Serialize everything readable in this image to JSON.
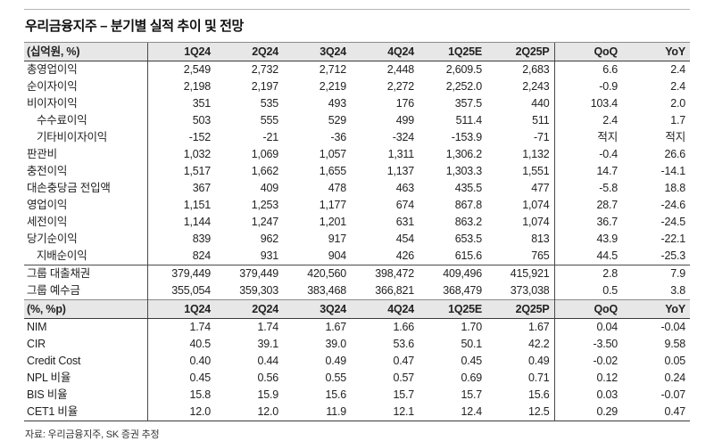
{
  "page": {
    "title": "우리금융지주 – 분기별 실적 추이 및 전망",
    "footer": "자료: 우리금융지주, SK 증권 추정"
  },
  "colors": {
    "header_bg": "#e7e7e7",
    "text": "#222222",
    "border_dark": "#3a3a3a"
  },
  "sections": [
    {
      "unit_label": "(십억원, %)",
      "columns": [
        "1Q24",
        "2Q24",
        "3Q24",
        "4Q24",
        "1Q25E",
        "2Q25P",
        "QoQ",
        "YoY"
      ],
      "row_groups": [
        {
          "rows": [
            {
              "label": "총영업이익",
              "indent": false,
              "values": [
                "2,549",
                "2,732",
                "2,712",
                "2,448",
                "2,609.5",
                "2,683",
                "6.6",
                "2.4"
              ]
            },
            {
              "label": "순이자이익",
              "indent": false,
              "values": [
                "2,198",
                "2,197",
                "2,219",
                "2,272",
                "2,252.0",
                "2,243",
                "-0.9",
                "2.4"
              ]
            },
            {
              "label": "비이자이익",
              "indent": false,
              "values": [
                "351",
                "535",
                "493",
                "176",
                "357.5",
                "440",
                "103.4",
                "2.0"
              ]
            },
            {
              "label": "수수료이익",
              "indent": true,
              "values": [
                "503",
                "555",
                "529",
                "499",
                "511.4",
                "511",
                "2.4",
                "1.7"
              ]
            },
            {
              "label": "기타비이자이익",
              "indent": true,
              "values": [
                "-152",
                "-21",
                "-36",
                "-324",
                "-153.9",
                "-71",
                "적지",
                "적지"
              ]
            },
            {
              "label": "판관비",
              "indent": false,
              "values": [
                "1,032",
                "1,069",
                "1,057",
                "1,311",
                "1,306.2",
                "1,132",
                "-0.4",
                "26.6"
              ]
            },
            {
              "label": "충전이익",
              "indent": false,
              "values": [
                "1,517",
                "1,662",
                "1,655",
                "1,137",
                "1,303.3",
                "1,551",
                "14.7",
                "-14.1"
              ]
            },
            {
              "label": "대손충당금 전입액",
              "indent": false,
              "values": [
                "367",
                "409",
                "478",
                "463",
                "435.5",
                "477",
                "-5.8",
                "18.8"
              ]
            },
            {
              "label": "영업이익",
              "indent": false,
              "values": [
                "1,151",
                "1,253",
                "1,177",
                "674",
                "867.8",
                "1,074",
                "28.7",
                "-24.6"
              ]
            },
            {
              "label": "세전이익",
              "indent": false,
              "values": [
                "1,144",
                "1,247",
                "1,201",
                "631",
                "863.2",
                "1,074",
                "36.7",
                "-24.5"
              ]
            },
            {
              "label": "당기순이익",
              "indent": false,
              "values": [
                "839",
                "962",
                "917",
                "454",
                "653.5",
                "813",
                "43.9",
                "-22.1"
              ]
            },
            {
              "label": "지배순이익",
              "indent": true,
              "values": [
                "824",
                "931",
                "904",
                "426",
                "615.6",
                "765",
                "44.5",
                "-25.3"
              ]
            }
          ]
        },
        {
          "rows": [
            {
              "label": "그룹 대출채권",
              "indent": false,
              "values": [
                "379,449",
                "379,449",
                "420,560",
                "398,472",
                "409,496",
                "415,921",
                "2.8",
                "7.9"
              ]
            },
            {
              "label": "그룹 예수금",
              "indent": false,
              "values": [
                "355,054",
                "359,303",
                "383,468",
                "366,821",
                "368,479",
                "373,038",
                "0.5",
                "3.8"
              ]
            }
          ]
        }
      ]
    },
    {
      "unit_label": "(%, %p)",
      "columns": [
        "1Q24",
        "2Q24",
        "3Q24",
        "4Q24",
        "1Q25E",
        "2Q25P",
        "QoQ",
        "YoY"
      ],
      "row_groups": [
        {
          "rows": [
            {
              "label": "NIM",
              "indent": false,
              "values": [
                "1.74",
                "1.74",
                "1.67",
                "1.66",
                "1.70",
                "1.67",
                "0.04",
                "-0.04"
              ]
            },
            {
              "label": "CIR",
              "indent": false,
              "values": [
                "40.5",
                "39.1",
                "39.0",
                "53.6",
                "50.1",
                "42.2",
                "-3.50",
                "9.58"
              ]
            },
            {
              "label": "Credit Cost",
              "indent": false,
              "values": [
                "0.40",
                "0.44",
                "0.49",
                "0.47",
                "0.45",
                "0.49",
                "-0.02",
                "0.05"
              ]
            },
            {
              "label": "NPL 비율",
              "indent": false,
              "values": [
                "0.45",
                "0.56",
                "0.55",
                "0.57",
                "0.69",
                "0.71",
                "0.12",
                "0.24"
              ]
            },
            {
              "label": "BIS 비율",
              "indent": false,
              "values": [
                "15.8",
                "15.9",
                "15.6",
                "15.7",
                "15.7",
                "15.6",
                "0.03",
                "-0.07"
              ]
            },
            {
              "label": "CET1 비율",
              "indent": false,
              "values": [
                "12.0",
                "12.0",
                "11.9",
                "12.1",
                "12.4",
                "12.5",
                "0.29",
                "0.47"
              ]
            }
          ]
        }
      ]
    }
  ]
}
